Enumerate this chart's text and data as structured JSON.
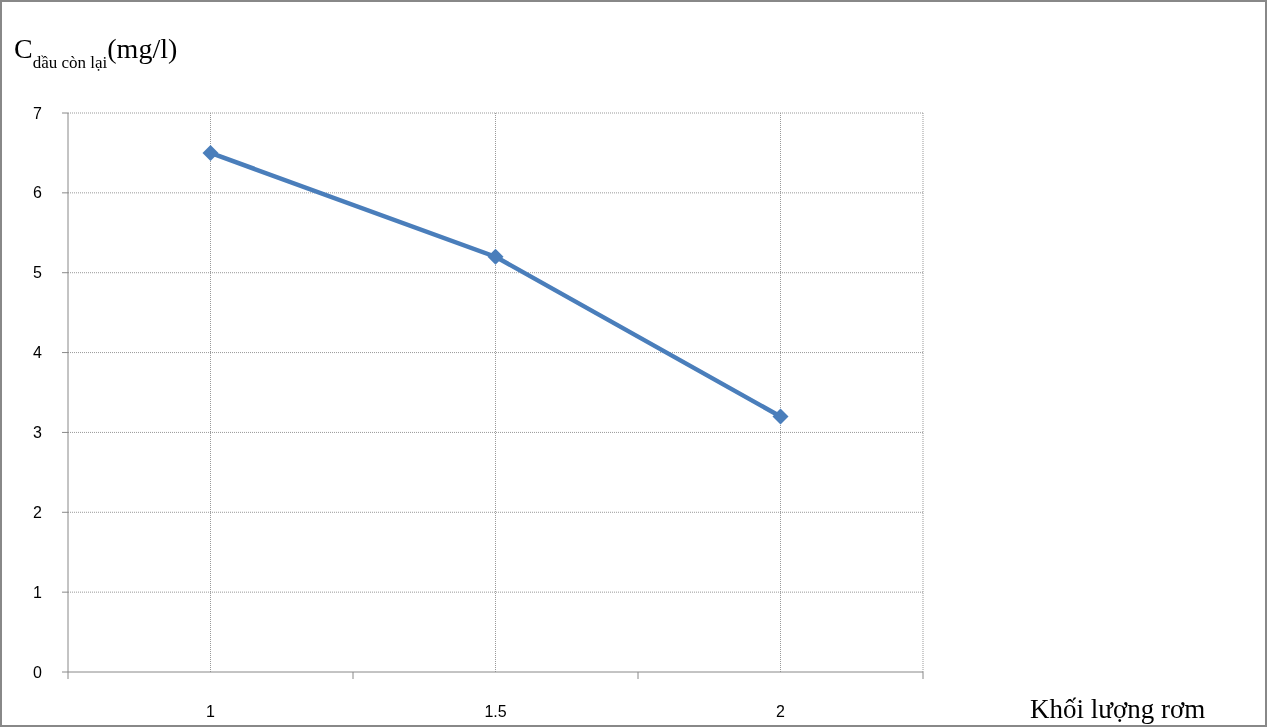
{
  "chart_data": {
    "type": "line",
    "ylabel": "C$_{dầu còn lại}$(mg/l)",
    "xlabel": "Khối lượng rơm",
    "categories": [
      "1",
      "1.5",
      "2"
    ],
    "series": [
      {
        "color": "#4a7ebb",
        "values": [
          6.5,
          5.2,
          3.2
        ]
      }
    ],
    "ylim": [
      0,
      7
    ],
    "yticks": [
      0,
      1,
      2,
      3,
      4,
      5,
      6,
      7
    ],
    "grid": true,
    "marker": "diamond",
    "line_style": "solid"
  }
}
